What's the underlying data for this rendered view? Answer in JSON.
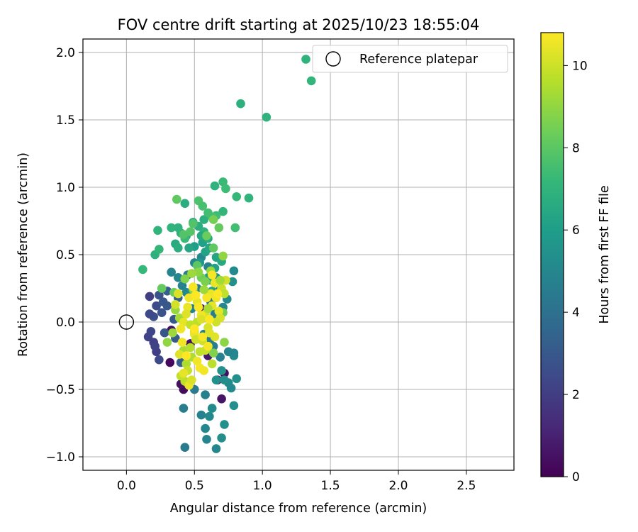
{
  "chart_data": {
    "type": "scatter",
    "title": "FOV centre drift starting at 2025/10/23 18:55:04",
    "xlabel": "Angular distance from reference (arcmin)",
    "ylabel": "Rotation from reference (arcmin)",
    "xlim": [
      -0.32,
      2.85
    ],
    "ylim": [
      -1.1,
      2.1
    ],
    "x_ticks": [
      0.0,
      0.5,
      1.0,
      1.5,
      2.0,
      2.5
    ],
    "x_tick_labels": [
      "0.0",
      "0.5",
      "1.0",
      "1.5",
      "2.0",
      "2.5"
    ],
    "y_ticks": [
      -1.0,
      -0.5,
      0.0,
      0.5,
      1.0,
      1.5,
      2.0
    ],
    "y_tick_labels": [
      "−1.0",
      "−0.5",
      "0.0",
      "0.5",
      "1.0",
      "1.5",
      "2.0"
    ],
    "grid": true,
    "legend": {
      "placement": "top-right",
      "entries": [
        "Reference platepar"
      ]
    },
    "reference_point": {
      "x": 0.0,
      "y": 0.0,
      "label": "Reference platepar"
    },
    "colorbar": {
      "label": "Hours from first FF file",
      "range": [
        0,
        10.8
      ],
      "ticks": [
        0,
        2,
        4,
        6,
        8,
        10
      ],
      "tick_labels": [
        "0",
        "2",
        "4",
        "6",
        "8",
        "10"
      ],
      "colormap": [
        "#440154",
        "#482878",
        "#3e4989",
        "#31688e",
        "#26828e",
        "#1f9e89",
        "#35b779",
        "#6ece58",
        "#b5de2b",
        "#fde725"
      ]
    },
    "series": [
      {
        "points": [
          [
            0.32,
            -0.3,
            0.2
          ],
          [
            0.42,
            -0.5,
            0.3
          ],
          [
            0.4,
            -0.46,
            0.5
          ],
          [
            0.72,
            -0.38,
            0.4
          ],
          [
            0.7,
            -0.57,
            0.6
          ],
          [
            0.33,
            -0.06,
            0.5
          ],
          [
            0.47,
            -0.16,
            0.4
          ],
          [
            0.6,
            -0.25,
            0.7
          ],
          [
            0.55,
            0.1,
            0.6
          ],
          [
            0.67,
            -0.43,
            0.8
          ],
          [
            0.17,
            0.19,
            2.0
          ],
          [
            0.16,
            -0.11,
            2.2
          ],
          [
            0.2,
            -0.15,
            2.1
          ],
          [
            0.18,
            -0.07,
            2.3
          ],
          [
            0.22,
            -0.22,
            2.0
          ],
          [
            0.24,
            -0.28,
            2.4
          ],
          [
            0.22,
            0.12,
            2.5
          ],
          [
            0.2,
            0.04,
            2.6
          ],
          [
            0.17,
            0.06,
            2.4
          ],
          [
            0.24,
            0.2,
            2.7
          ],
          [
            0.26,
            0.07,
            2.8
          ],
          [
            0.3,
            0.12,
            3.0
          ],
          [
            0.28,
            -0.08,
            2.9
          ],
          [
            0.36,
            -0.12,
            3.1
          ],
          [
            0.4,
            -0.3,
            3.2
          ],
          [
            0.21,
            -0.18,
            2.2
          ],
          [
            0.27,
            0.15,
            2.9
          ],
          [
            0.35,
            0.02,
            3.0
          ],
          [
            0.3,
            0.23,
            3.2
          ],
          [
            0.38,
            0.18,
            3.3
          ],
          [
            0.43,
            -0.93,
            4.5
          ],
          [
            0.42,
            -0.64,
            4.6
          ],
          [
            0.5,
            -0.5,
            4.4
          ],
          [
            0.55,
            -0.69,
            4.8
          ],
          [
            0.58,
            -0.54,
            4.7
          ],
          [
            0.58,
            -0.79,
            5.0
          ],
          [
            0.59,
            -0.87,
            4.9
          ],
          [
            0.61,
            -0.7,
            5.1
          ],
          [
            0.63,
            -0.64,
            5.2
          ],
          [
            0.66,
            -0.94,
            5.0
          ],
          [
            0.7,
            -0.86,
            5.3
          ],
          [
            0.72,
            -0.76,
            5.4
          ],
          [
            0.77,
            -0.49,
            5.1
          ],
          [
            0.75,
            -0.45,
            5.2
          ],
          [
            0.79,
            -0.62,
            5.3
          ],
          [
            0.81,
            -0.42,
            5.4
          ],
          [
            0.79,
            -0.25,
            5.2
          ],
          [
            0.79,
            -0.23,
            5.0
          ],
          [
            0.75,
            -0.22,
            4.9
          ],
          [
            0.72,
            -0.43,
            5.3
          ],
          [
            0.7,
            -0.36,
            5.5
          ],
          [
            0.66,
            -0.43,
            5.4
          ],
          [
            0.69,
            -0.26,
            4.8
          ],
          [
            0.64,
            -0.18,
            4.6
          ],
          [
            0.61,
            -0.14,
            4.5
          ],
          [
            0.57,
            -0.09,
            4.7
          ],
          [
            0.48,
            0.1,
            4.8
          ],
          [
            0.52,
            0.25,
            4.6
          ],
          [
            0.56,
            0.03,
            4.4
          ],
          [
            0.62,
            0.15,
            4.3
          ],
          [
            0.65,
            0.06,
            4.5
          ],
          [
            0.68,
            0.23,
            4.9
          ],
          [
            0.71,
            0.11,
            5.0
          ],
          [
            0.74,
            0.17,
            5.1
          ],
          [
            0.78,
            0.3,
            5.4
          ],
          [
            0.79,
            0.38,
            5.2
          ],
          [
            0.66,
            0.33,
            5.6
          ],
          [
            0.6,
            0.41,
            4.7
          ],
          [
            0.55,
            0.48,
            5.0
          ],
          [
            0.5,
            0.44,
            4.9
          ],
          [
            0.45,
            0.35,
            4.6
          ],
          [
            0.41,
            0.27,
            4.8
          ],
          [
            0.38,
            0.33,
            5.0
          ],
          [
            0.33,
            0.37,
            4.9
          ],
          [
            0.44,
            0.22,
            5.1
          ],
          [
            0.5,
            0.56,
            6.0
          ],
          [
            0.56,
            0.59,
            6.1
          ],
          [
            0.54,
            0.44,
            5.8
          ],
          [
            0.58,
            0.52,
            6.2
          ],
          [
            0.6,
            0.33,
            6.0
          ],
          [
            0.62,
            0.31,
            6.4
          ],
          [
            0.63,
            0.23,
            6.3
          ],
          [
            0.68,
            0.29,
            6.2
          ],
          [
            0.65,
            0.4,
            6.1
          ],
          [
            0.66,
            0.48,
            6.3
          ],
          [
            0.7,
            0.45,
            6.5
          ],
          [
            0.46,
            0.55,
            6.4
          ],
          [
            0.44,
            0.64,
            6.6
          ],
          [
            0.49,
            0.74,
            6.5
          ],
          [
            0.53,
            0.71,
            6.7
          ],
          [
            0.57,
            0.76,
            6.8
          ],
          [
            0.6,
            0.62,
            6.6
          ],
          [
            0.57,
            0.67,
            6.9
          ],
          [
            0.61,
            0.55,
            6.4
          ],
          [
            0.55,
            0.64,
            6.5
          ],
          [
            0.36,
            0.58,
            6.6
          ],
          [
            0.38,
            0.55,
            6.7
          ],
          [
            0.4,
            0.66,
            6.8
          ],
          [
            0.33,
            0.7,
            7.0
          ],
          [
            0.38,
            0.7,
            6.9
          ],
          [
            0.21,
            0.5,
            6.8
          ],
          [
            0.24,
            0.54,
            7.1
          ],
          [
            0.12,
            0.39,
            7.2
          ],
          [
            0.23,
            0.68,
            7.0
          ],
          [
            0.43,
            0.88,
            6.7
          ],
          [
            0.43,
            0.62,
            7.3
          ],
          [
            0.65,
            1.01,
            6.9
          ],
          [
            0.71,
            0.82,
            7.1
          ],
          [
            0.84,
            1.62,
            6.8
          ],
          [
            1.03,
            1.52,
            6.9
          ],
          [
            1.32,
            1.95,
            7.0
          ],
          [
            1.36,
            1.79,
            7.1
          ],
          [
            0.71,
            1.04,
            7.3
          ],
          [
            0.73,
            0.99,
            7.4
          ],
          [
            0.81,
            0.93,
            7.2
          ],
          [
            0.9,
            0.92,
            7.0
          ],
          [
            0.8,
            0.7,
            7.5
          ],
          [
            0.66,
            0.79,
            7.4
          ],
          [
            0.63,
            0.78,
            7.6
          ],
          [
            0.6,
            0.81,
            7.5
          ],
          [
            0.53,
            0.9,
            7.7
          ],
          [
            0.56,
            0.86,
            7.6
          ],
          [
            0.49,
            0.73,
            7.8
          ],
          [
            0.47,
            0.67,
            7.9
          ],
          [
            0.42,
            0.65,
            7.8
          ],
          [
            0.37,
            0.91,
            8.1
          ],
          [
            0.26,
            0.25,
            8.2
          ],
          [
            0.35,
            0.22,
            8.3
          ],
          [
            0.52,
            0.42,
            8.0
          ],
          [
            0.64,
            0.55,
            8.1
          ],
          [
            0.68,
            0.7,
            8.2
          ],
          [
            0.55,
            0.33,
            8.4
          ],
          [
            0.59,
            0.64,
            8.3
          ],
          [
            0.64,
            0.76,
            8.5
          ],
          [
            0.58,
            0.3,
            8.6
          ],
          [
            0.43,
            0.32,
            8.7
          ],
          [
            0.49,
            0.24,
            8.8
          ],
          [
            0.71,
            0.07,
            8.5
          ],
          [
            0.72,
            -0.15,
            8.9
          ],
          [
            0.64,
            -0.23,
            8.7
          ],
          [
            0.3,
            -0.15,
            9.0
          ],
          [
            0.36,
            0.09,
            9.1
          ],
          [
            0.34,
            -0.08,
            9.2
          ],
          [
            0.39,
            0.03,
            9.3
          ],
          [
            0.42,
            -0.21,
            9.4
          ],
          [
            0.44,
            -0.31,
            9.5
          ],
          [
            0.47,
            -0.19,
            9.6
          ],
          [
            0.43,
            -0.44,
            9.7
          ],
          [
            0.4,
            -0.4,
            9.8
          ],
          [
            0.45,
            -0.36,
            9.9
          ],
          [
            0.48,
            -0.26,
            9.5
          ],
          [
            0.5,
            -0.07,
            9.6
          ],
          [
            0.52,
            0.0,
            9.7
          ],
          [
            0.54,
            -0.22,
            9.8
          ],
          [
            0.56,
            -0.14,
            10.0
          ],
          [
            0.58,
            0.06,
            10.1
          ],
          [
            0.6,
            -0.04,
            10.2
          ],
          [
            0.61,
            -0.08,
            10.3
          ],
          [
            0.63,
            0.12,
            10.4
          ],
          [
            0.65,
            0.29,
            10.5
          ],
          [
            0.66,
            0.18,
            10.6
          ],
          [
            0.68,
            0.08,
            10.4
          ],
          [
            0.69,
            0.03,
            10.2
          ],
          [
            0.7,
            0.25,
            10.0
          ],
          [
            0.72,
            0.21,
            9.8
          ],
          [
            0.73,
            0.31,
            10.1
          ],
          [
            0.65,
            -0.11,
            10.3
          ],
          [
            0.62,
            0.21,
            10.5
          ],
          [
            0.59,
            0.18,
            10.7
          ],
          [
            0.55,
            0.05,
            10.6
          ],
          [
            0.52,
            0.15,
            10.4
          ],
          [
            0.5,
            -0.09,
            10.5
          ],
          [
            0.49,
            0.26,
            10.7
          ],
          [
            0.46,
            0.18,
            10.6
          ],
          [
            0.45,
            0.11,
            10.5
          ],
          [
            0.44,
            0.06,
            10.3
          ],
          [
            0.42,
            0.0,
            10.4
          ],
          [
            0.4,
            -0.05,
            10.6
          ],
          [
            0.38,
            0.21,
            10.2
          ],
          [
            0.36,
            0.13,
            10.1
          ],
          [
            0.39,
            -0.24,
            10.3
          ],
          [
            0.42,
            -0.38,
            10.4
          ],
          [
            0.46,
            -0.47,
            10.5
          ],
          [
            0.52,
            -0.29,
            10.6
          ],
          [
            0.54,
            -0.34,
            10.7
          ],
          [
            0.57,
            -0.36,
            10.6
          ],
          [
            0.48,
            -0.43,
            10.2
          ],
          [
            0.58,
            -0.21,
            9.9
          ],
          [
            0.63,
            -0.31,
            9.7
          ],
          [
            0.66,
            0.0,
            10.0
          ],
          [
            0.55,
            0.02,
            10.2
          ],
          [
            0.51,
            -0.13,
            10.0
          ],
          [
            0.47,
            -0.02,
            9.8
          ],
          [
            0.6,
            0.1,
            9.4
          ],
          [
            0.57,
            0.24,
            9.2
          ],
          [
            0.69,
            0.31,
            9.3
          ],
          [
            0.71,
            0.49,
            9.0
          ],
          [
            0.62,
            0.38,
            9.1
          ],
          [
            0.53,
            0.37,
            8.9
          ],
          [
            0.48,
            0.36,
            9.2
          ],
          [
            0.51,
            0.2,
            10.8
          ],
          [
            0.53,
            0.11,
            10.8
          ],
          [
            0.61,
            0.02,
            10.8
          ],
          [
            0.63,
            0.35,
            10.7
          ],
          [
            0.67,
            0.21,
            10.8
          ],
          [
            0.5,
            -0.05,
            10.8
          ],
          [
            0.56,
            -0.11,
            10.7
          ],
          [
            0.41,
            -0.15,
            10.6
          ],
          [
            0.44,
            -0.25,
            10.8
          ],
          [
            0.6,
            -0.18,
            10.7
          ]
        ]
      }
    ]
  }
}
